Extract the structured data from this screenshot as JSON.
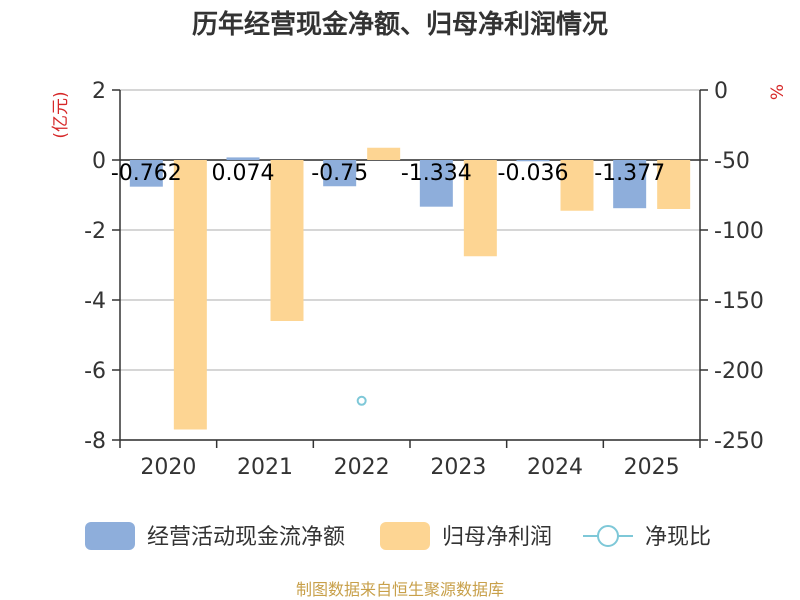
{
  "title": "历年经营现金净额、归母净利润情况",
  "source": "制图数据来自恒生聚源数据库",
  "chart_data": {
    "type": "bar",
    "title": "历年经营现金净额、归母净利润情况",
    "categories": [
      "2020",
      "2021",
      "2022",
      "2023",
      "2024",
      "2025"
    ],
    "left_axis": {
      "unit_label": "(亿元)",
      "ylim": [
        -8,
        2
      ],
      "ticks": [
        "2",
        "0",
        "-2",
        "-4",
        "-6",
        "-8"
      ]
    },
    "right_axis": {
      "unit_label": "%",
      "ylim": [
        -250,
        0
      ],
      "ticks": [
        "0",
        "-50",
        "-100",
        "-150",
        "-200",
        "-250"
      ]
    },
    "grid": true,
    "legend_position": "bottom",
    "series": [
      {
        "name": "经营活动现金流净额",
        "kind": "bar",
        "axis": "left",
        "color": "#8eaedb",
        "values": [
          -0.762,
          0.074,
          -0.75,
          -1.334,
          -0.036,
          -1.377
        ],
        "labels": [
          "-0.762",
          "0.074",
          "-0.75",
          "-1.334",
          "-0.036",
          "-1.377"
        ]
      },
      {
        "name": "归母净利润",
        "kind": "bar",
        "axis": "left",
        "color": "#fdd593",
        "values": [
          -7.7,
          -4.6,
          0.35,
          -2.75,
          -1.45,
          -1.4
        ]
      },
      {
        "name": "净现比",
        "kind": "point",
        "axis": "right",
        "color": "#7ec8d8",
        "values": [
          null,
          null,
          -222,
          null,
          null,
          null
        ]
      }
    ]
  }
}
